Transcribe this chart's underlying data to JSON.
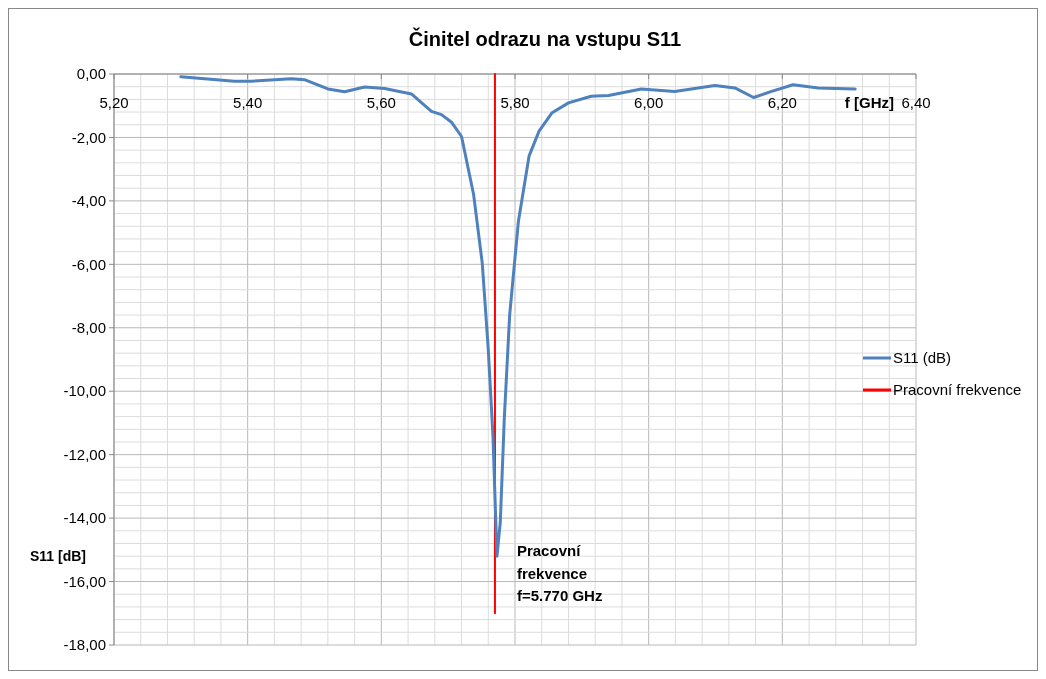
{
  "chart_data": {
    "type": "line",
    "title": "Činitel odrazu na vstupu S11",
    "xlabel": "f [GHz]",
    "ylabel": "S11 [dB]",
    "xlim": [
      5.2,
      6.4
    ],
    "ylim": [
      -18,
      0
    ],
    "xticks": [
      {
        "value": 5.2,
        "label": "5,20"
      },
      {
        "value": 5.24,
        "label": null
      },
      {
        "value": 5.28,
        "label": null
      },
      {
        "value": 5.32,
        "label": null
      },
      {
        "value": 5.36,
        "label": null
      },
      {
        "value": 5.4,
        "label": "5,40"
      },
      {
        "value": 5.44,
        "label": null
      },
      {
        "value": 5.48,
        "label": null
      },
      {
        "value": 5.52,
        "label": null
      },
      {
        "value": 5.56,
        "label": null
      },
      {
        "value": 5.6,
        "label": "5,60"
      },
      {
        "value": 5.64,
        "label": null
      },
      {
        "value": 5.68,
        "label": null
      },
      {
        "value": 5.72,
        "label": null
      },
      {
        "value": 5.76,
        "label": null
      },
      {
        "value": 5.8,
        "label": "5,80"
      },
      {
        "value": 5.84,
        "label": null
      },
      {
        "value": 5.88,
        "label": null
      },
      {
        "value": 5.92,
        "label": null
      },
      {
        "value": 5.96,
        "label": null
      },
      {
        "value": 6.0,
        "label": "6,00"
      },
      {
        "value": 6.04,
        "label": null
      },
      {
        "value": 6.08,
        "label": null
      },
      {
        "value": 6.12,
        "label": null
      },
      {
        "value": 6.16,
        "label": null
      },
      {
        "value": 6.2,
        "label": "6,20"
      },
      {
        "value": 6.24,
        "label": null
      },
      {
        "value": 6.28,
        "label": null
      },
      {
        "value": 6.32,
        "label": null
      },
      {
        "value": 6.36,
        "label": null
      },
      {
        "value": 6.4,
        "label": "6,40"
      }
    ],
    "yticks": [
      {
        "value": 0,
        "label": "0,00"
      },
      {
        "value": -0.4,
        "label": null
      },
      {
        "value": -0.8,
        "label": null
      },
      {
        "value": -1.2,
        "label": null
      },
      {
        "value": -1.6,
        "label": null
      },
      {
        "value": -2,
        "label": "-2,00"
      },
      {
        "value": -2.4,
        "label": null
      },
      {
        "value": -2.8,
        "label": null
      },
      {
        "value": -3.2,
        "label": null
      },
      {
        "value": -3.6,
        "label": null
      },
      {
        "value": -4,
        "label": "-4,00"
      },
      {
        "value": -4.4,
        "label": null
      },
      {
        "value": -4.8,
        "label": null
      },
      {
        "value": -5.2,
        "label": null
      },
      {
        "value": -5.6,
        "label": null
      },
      {
        "value": -6,
        "label": "-6,00"
      },
      {
        "value": -6.4,
        "label": null
      },
      {
        "value": -6.8,
        "label": null
      },
      {
        "value": -7.2,
        "label": null
      },
      {
        "value": -7.6,
        "label": null
      },
      {
        "value": -8,
        "label": "-8,00"
      },
      {
        "value": -8.4,
        "label": null
      },
      {
        "value": -8.8,
        "label": null
      },
      {
        "value": -9.2,
        "label": null
      },
      {
        "value": -9.6,
        "label": null
      },
      {
        "value": -10,
        "label": "-10,00"
      },
      {
        "value": -10.4,
        "label": null
      },
      {
        "value": -10.8,
        "label": null
      },
      {
        "value": -11.2,
        "label": null
      },
      {
        "value": -11.6,
        "label": null
      },
      {
        "value": -12,
        "label": "-12,00"
      },
      {
        "value": -12.4,
        "label": null
      },
      {
        "value": -12.8,
        "label": null
      },
      {
        "value": -13.2,
        "label": null
      },
      {
        "value": -13.6,
        "label": null
      },
      {
        "value": -14,
        "label": "-14,00"
      },
      {
        "value": -14.4,
        "label": null
      },
      {
        "value": -14.8,
        "label": null
      },
      {
        "value": -15.2,
        "label": null
      },
      {
        "value": -15.6,
        "label": null
      },
      {
        "value": -16,
        "label": "-16,00"
      },
      {
        "value": -16.4,
        "label": null
      },
      {
        "value": -16.8,
        "label": null
      },
      {
        "value": -17.2,
        "label": null
      },
      {
        "value": -17.6,
        "label": null
      },
      {
        "value": -18,
        "label": "-18,00"
      }
    ],
    "grid": true,
    "legend": "right",
    "marker": "none",
    "line_style": "solid",
    "series": [
      {
        "name": "S11 (dB)",
        "color": "#4f81bd",
        "x": [
          5.3,
          5.38,
          5.405,
          5.465,
          5.485,
          5.52,
          5.545,
          5.575,
          5.605,
          5.645,
          5.675,
          5.69,
          5.705,
          5.72,
          5.738,
          5.751,
          5.76,
          5.767,
          5.773,
          5.778,
          5.784,
          5.792,
          5.805,
          5.821,
          5.836,
          5.855,
          5.88,
          5.914,
          5.94,
          5.989,
          6.039,
          6.099,
          6.129,
          6.157,
          6.184,
          6.216,
          6.254,
          6.309
        ],
        "values": [
          -0.09,
          -0.23,
          -0.23,
          -0.15,
          -0.18,
          -0.47,
          -0.56,
          -0.41,
          -0.46,
          -0.63,
          -1.18,
          -1.28,
          -1.52,
          -1.97,
          -3.79,
          -5.96,
          -8.68,
          -11.41,
          -15.2,
          -14.13,
          -10.85,
          -7.6,
          -4.66,
          -2.59,
          -1.8,
          -1.23,
          -0.91,
          -0.7,
          -0.68,
          -0.47,
          -0.55,
          -0.36,
          -0.44,
          -0.74,
          -0.55,
          -0.34,
          -0.44,
          -0.47
        ]
      },
      {
        "name": "Pracovní frekvence",
        "color": "#ff0000",
        "x": [
          5.77,
          5.77
        ],
        "values": [
          0,
          -17
        ]
      }
    ],
    "annotations": [
      {
        "text": "Pracovní\nfrekvence\nf=5.770 GHz",
        "x": 5.77,
        "y": -15.2
      }
    ]
  }
}
